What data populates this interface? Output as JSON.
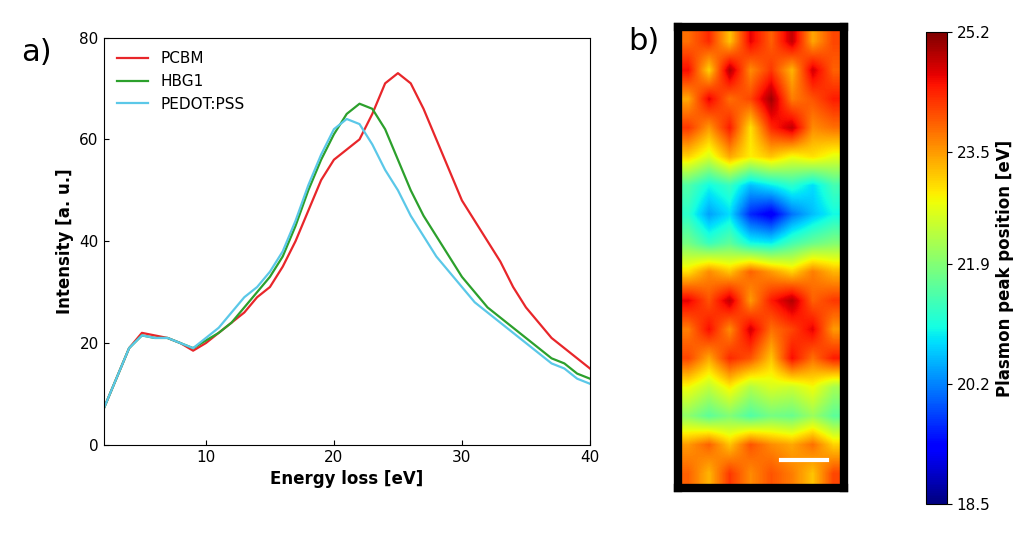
{
  "chart_data": [
    {
      "type": "line",
      "title": "a)",
      "x_label": "Energy loss [eV]",
      "y_label": "Intensity [a. u.]",
      "x": [
        2,
        3,
        4,
        5,
        6,
        7,
        8,
        9,
        10,
        11,
        12,
        13,
        14,
        15,
        16,
        17,
        18,
        19,
        20,
        21,
        22,
        23,
        24,
        25,
        26,
        27,
        28,
        29,
        30,
        31,
        32,
        33,
        34,
        35,
        36,
        37,
        38,
        39,
        40
      ],
      "xlim": [
        2,
        40
      ],
      "ylim": [
        0,
        80
      ],
      "xticks": [
        10,
        20,
        30,
        40
      ],
      "yticks": [
        0,
        20,
        40,
        60,
        80
      ],
      "legend": "upper left",
      "series": [
        {
          "name": "PCBM",
          "color": "#e8262a",
          "values": [
            7,
            13,
            19,
            22,
            21.5,
            21,
            20,
            18.5,
            20,
            22,
            24,
            26,
            29,
            31,
            35,
            40,
            46,
            52,
            56,
            58,
            60,
            65,
            71,
            73,
            71,
            66,
            60,
            54,
            48,
            44,
            40,
            36,
            31,
            27,
            24,
            21,
            19,
            17,
            15
          ]
        },
        {
          "name": "HBG1",
          "color": "#2ca02c",
          "values": [
            7,
            13,
            19,
            21.5,
            21,
            21,
            20,
            19,
            20.5,
            22,
            24,
            27,
            30,
            33,
            37,
            43,
            50,
            56,
            61,
            65,
            67,
            66,
            62,
            56,
            50,
            45,
            41,
            37,
            33,
            30,
            27,
            25,
            23,
            21,
            19,
            17,
            16,
            14,
            13
          ]
        },
        {
          "name": "PEDOT:PSS",
          "color": "#5bc8e8",
          "values": [
            7,
            13,
            19,
            21.5,
            21,
            21,
            20,
            19,
            21,
            23,
            26,
            29,
            31,
            34,
            38,
            44,
            51,
            57,
            62,
            64,
            63,
            59,
            54,
            50,
            45,
            41,
            37,
            34,
            31,
            28,
            26,
            24,
            22,
            20,
            18,
            16,
            15,
            13,
            12
          ]
        }
      ]
    },
    {
      "type": "heatmap",
      "title": "b)",
      "tick_labels": false,
      "colorbar_label": "Plasmon peak position [eV]",
      "colorbar_range": [
        18.5,
        25.2
      ],
      "colorbar_ticks": [
        18.5,
        20.2,
        21.9,
        23.5,
        25.2
      ],
      "cells": [
        [
          23.8,
          24.3,
          23.2,
          24.6,
          23.9,
          24.8,
          23.4,
          24.1
        ],
        [
          24.5,
          23.1,
          24.9,
          23.6,
          24.2,
          23.3,
          24.7,
          23.9
        ],
        [
          23.4,
          24.6,
          23.8,
          24.1,
          25.0,
          23.7,
          24.0,
          24.4
        ],
        [
          24.2,
          23.5,
          24.4,
          23.0,
          24.3,
          24.8,
          23.6,
          23.8
        ],
        [
          23.1,
          22.6,
          23.4,
          22.9,
          23.2,
          22.8,
          23.0,
          22.7
        ],
        [
          21.5,
          21.0,
          21.3,
          20.6,
          20.9,
          21.2,
          20.8,
          21.4
        ],
        [
          21.2,
          20.4,
          20.8,
          19.6,
          19.2,
          20.1,
          20.6,
          21.0
        ],
        [
          21.8,
          21.3,
          21.6,
          21.0,
          20.9,
          21.4,
          21.7,
          21.9
        ],
        [
          23.0,
          23.6,
          23.2,
          23.9,
          23.5,
          23.1,
          23.7,
          23.3
        ],
        [
          24.6,
          24.0,
          24.8,
          23.5,
          24.4,
          24.9,
          23.9,
          24.2
        ],
        [
          23.7,
          24.5,
          23.6,
          24.7,
          23.8,
          24.1,
          24.6,
          23.5
        ],
        [
          24.1,
          23.4,
          24.3,
          24.0,
          23.2,
          24.5,
          23.8,
          24.4
        ],
        [
          22.8,
          22.4,
          22.9,
          22.3,
          22.6,
          22.5,
          22.8,
          22.2
        ],
        [
          22.0,
          21.6,
          21.9,
          21.5,
          21.8,
          21.7,
          22.1,
          21.6
        ],
        [
          23.5,
          23.9,
          23.2,
          24.0,
          23.6,
          23.4,
          23.8,
          23.1
        ],
        [
          23.9,
          23.3,
          24.2,
          23.6,
          24.0,
          23.7,
          23.2,
          24.1
        ]
      ]
    }
  ]
}
